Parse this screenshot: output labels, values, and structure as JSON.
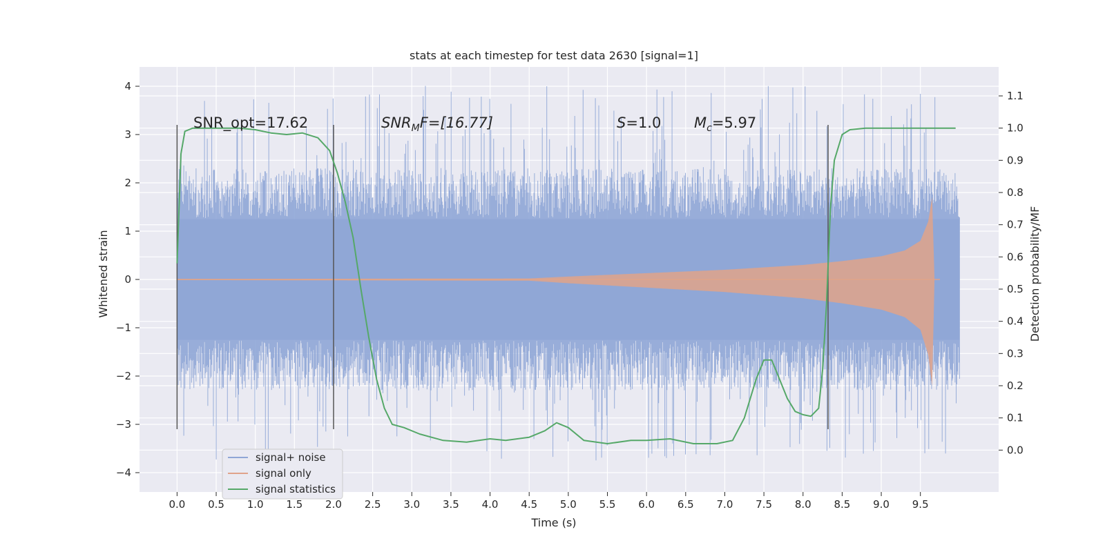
{
  "chart_data": {
    "type": "line",
    "title": "stats at each timestep for test data 2630 [signal=1]",
    "xlabel": "Time (s)",
    "ylabel": "Whitened strain",
    "y2label": "Detection probability/MF",
    "xlim": [
      -0.48,
      10.5
    ],
    "ylim": [
      -4.4,
      4.4
    ],
    "y2lim": [
      -0.13,
      1.19
    ],
    "xticks": [
      "0.0",
      "0.5",
      "1.0",
      "1.5",
      "2.0",
      "2.5",
      "3.0",
      "3.5",
      "4.0",
      "4.5",
      "5.0",
      "5.5",
      "6.0",
      "6.5",
      "7.0",
      "7.5",
      "8.0",
      "8.5",
      "9.0",
      "9.5"
    ],
    "yticks": [
      "4",
      "3",
      "2",
      "1",
      "0",
      "−1",
      "−2",
      "−3",
      "−4"
    ],
    "y2ticks": [
      "1.1",
      "1.0",
      "0.9",
      "0.8",
      "0.7",
      "0.6",
      "0.5",
      "0.4",
      "0.3",
      "0.2",
      "0.1",
      "0.0"
    ],
    "grid": true,
    "legend_position": "lower-left",
    "annotations": {
      "snr_opt": "SNR_opt=17.62",
      "snr_mf_main": "SNR",
      "snr_mf_sub": "M",
      "snr_mf_rest": "F=[16.77]",
      "s_main": "S",
      "s_rest": "=1.0",
      "mc_main": "M",
      "mc_sub": "c",
      "mc_rest": "=5.97"
    },
    "vertical_markers": [
      {
        "x": 0.0,
        "y_range": [
          -3.1,
          3.2
        ]
      },
      {
        "x": 2.0,
        "y_range": [
          -3.1,
          3.2
        ]
      },
      {
        "x": 8.32,
        "y_range": [
          -3.1,
          3.2
        ]
      }
    ],
    "series": [
      {
        "name": "signal+ noise",
        "color": "#8fa6d6",
        "axis": "left",
        "t_range": [
          0.0,
          10.0
        ],
        "envelope": {
          "typical": 2.3,
          "max": 4.05,
          "min": -3.75
        }
      },
      {
        "name": "signal only",
        "color": "#e0a38a",
        "axis": "left",
        "t_range": [
          0.0,
          9.75
        ],
        "chirp_envelope": [
          [
            0.0,
            0.01
          ],
          [
            4.5,
            0.02
          ],
          [
            5.0,
            0.06
          ],
          [
            6.0,
            0.13
          ],
          [
            7.0,
            0.2
          ],
          [
            8.0,
            0.3
          ],
          [
            8.5,
            0.38
          ],
          [
            9.0,
            0.48
          ],
          [
            9.3,
            0.6
          ],
          [
            9.5,
            0.8
          ],
          [
            9.6,
            1.2
          ],
          [
            9.65,
            1.7
          ],
          [
            9.68,
            0.0
          ]
        ]
      },
      {
        "name": "signal statistics",
        "color": "#55a868",
        "axis": "right",
        "x": [
          0.0,
          0.05,
          0.1,
          0.15,
          0.2,
          0.3,
          0.5,
          0.8,
          1.0,
          1.2,
          1.4,
          1.6,
          1.8,
          1.95,
          2.05,
          2.15,
          2.25,
          2.35,
          2.45,
          2.55,
          2.65,
          2.75,
          2.9,
          3.1,
          3.4,
          3.7,
          4.0,
          4.2,
          4.5,
          4.7,
          4.85,
          5.0,
          5.2,
          5.5,
          5.8,
          6.0,
          6.3,
          6.6,
          6.9,
          7.1,
          7.25,
          7.4,
          7.5,
          7.6,
          7.7,
          7.8,
          7.9,
          8.0,
          8.1,
          8.2,
          8.25,
          8.3,
          8.35,
          8.4,
          8.5,
          8.6,
          8.8,
          9.0,
          9.5,
          9.95
        ],
        "values": [
          0.58,
          0.92,
          0.99,
          0.995,
          1.0,
          1.0,
          1.0,
          1.0,
          0.995,
          0.985,
          0.98,
          0.985,
          0.97,
          0.93,
          0.86,
          0.77,
          0.66,
          0.5,
          0.35,
          0.22,
          0.13,
          0.08,
          0.07,
          0.05,
          0.03,
          0.025,
          0.035,
          0.03,
          0.04,
          0.06,
          0.085,
          0.07,
          0.03,
          0.02,
          0.03,
          0.03,
          0.035,
          0.02,
          0.02,
          0.03,
          0.1,
          0.22,
          0.28,
          0.28,
          0.22,
          0.16,
          0.12,
          0.11,
          0.105,
          0.13,
          0.25,
          0.45,
          0.75,
          0.9,
          0.98,
          0.995,
          1.0,
          1.0,
          1.0,
          1.0
        ]
      }
    ]
  }
}
